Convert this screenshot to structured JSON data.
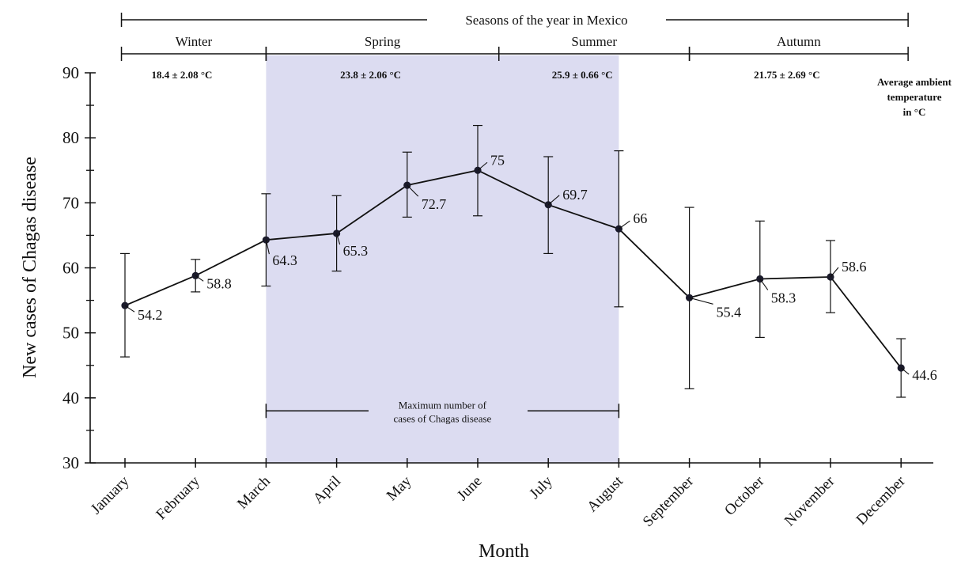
{
  "chart_data": {
    "type": "line",
    "categories": [
      "January",
      "February",
      "March",
      "April",
      "May",
      "June",
      "July",
      "August",
      "September",
      "October",
      "November",
      "December"
    ],
    "values": [
      54.2,
      58.8,
      64.3,
      65.3,
      72.7,
      75,
      69.7,
      66,
      55.4,
      58.3,
      58.6,
      44.6
    ],
    "value_labels": [
      "54.2",
      "58.8",
      "64.3",
      "65.3",
      "72.7",
      "75",
      "69.7",
      "66",
      "55.4",
      "58.3",
      "58.6",
      "44.6"
    ],
    "error_low": [
      46.3,
      56.3,
      57.2,
      59.5,
      67.8,
      68,
      62.2,
      54,
      41.4,
      49.3,
      53.1,
      40.1
    ],
    "error_high": [
      62.2,
      61.3,
      71.4,
      71.1,
      77.8,
      81.9,
      77.1,
      78,
      69.3,
      67.2,
      64.2,
      49.1
    ],
    "xlabel": "Month",
    "ylabel": "New cases of Chagas disease",
    "ylim": [
      30,
      90
    ],
    "yticks": [
      30,
      40,
      50,
      60,
      70,
      80,
      90
    ],
    "grid": false,
    "line_color": "#111111",
    "highlight": {
      "from": "March",
      "to": "August",
      "color": "#dcdcf1",
      "label_line1": "Maximum number of",
      "label_line2": "cases of Chagas disease",
      "label_value": 38
    },
    "top_bracket_label": "Seasons of the year in Mexico",
    "seasons": [
      {
        "name": "Winter",
        "from_index": -0.05,
        "to_index": 2,
        "temp": "18.4 ± 2.08 °C"
      },
      {
        "name": "Spring",
        "from_index": 2,
        "to_index": 5.3,
        "temp": "23.8 ± 2.06 °C"
      },
      {
        "name": "Summer",
        "from_index": 5.3,
        "to_index": 8,
        "temp": "25.9 ± 0.66 °C"
      },
      {
        "name": "Autumn",
        "from_index": 8,
        "to_index": 11.1,
        "temp": "21.75 ± 2.69 °C"
      }
    ],
    "temperature_note": [
      "Average ambient",
      "temperature",
      "in °C"
    ]
  }
}
